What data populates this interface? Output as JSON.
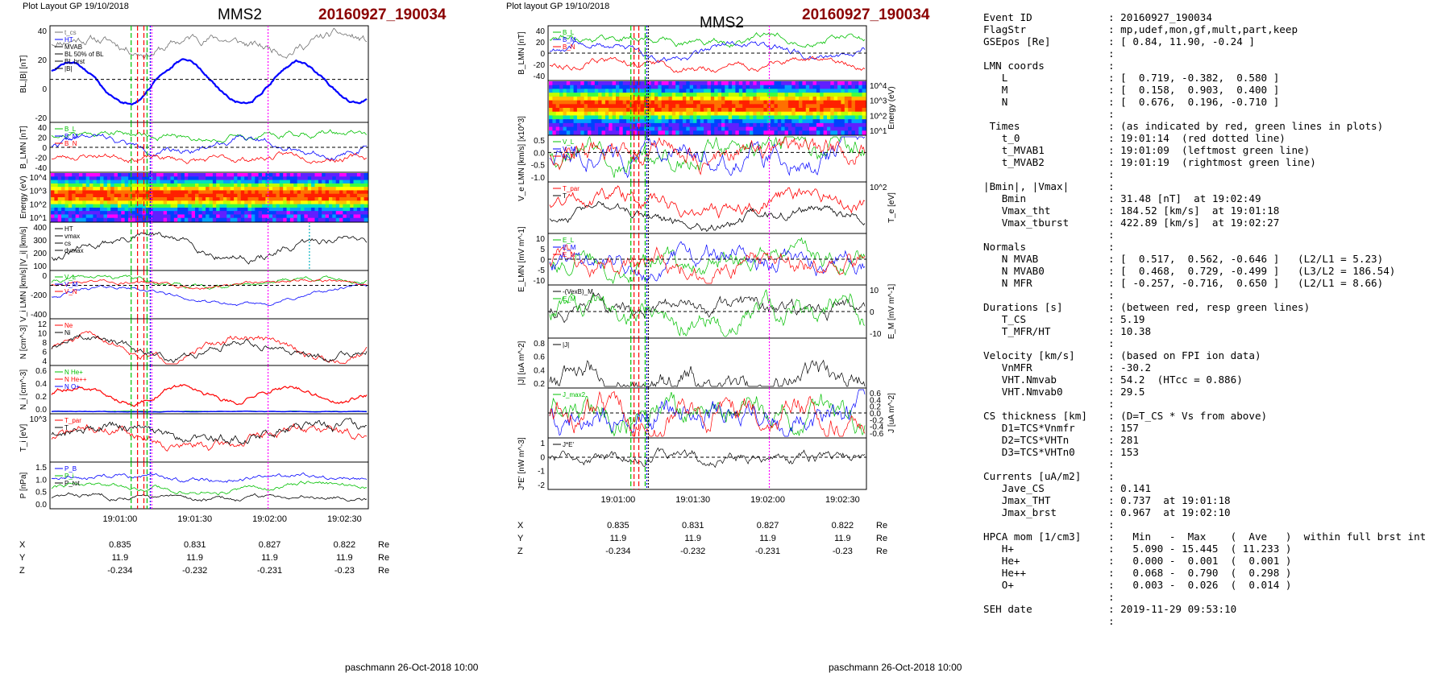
{
  "left_plot": {
    "header_left": "Plot Layout GP 19/10/2018",
    "spacecraft": "MMS2",
    "event": "20160927_190034",
    "footer": "paschmann 26-Oct-2018 10:00"
  },
  "mid_plot": {
    "header_left": "Plot layout GP 19/10/2018",
    "spacecraft": "MMS2",
    "event": "20160927_190034",
    "footer": "paschmann 26-Oct-2018 10:00"
  },
  "time_ticks": [
    "19:01:00",
    "19:01:30",
    "19:02:00",
    "19:02:30"
  ],
  "ephemeris": {
    "rows": [
      {
        "name": "X",
        "values": [
          "0.835",
          "0.831",
          "0.827",
          "0.822"
        ],
        "unit": "Re"
      },
      {
        "name": "Y",
        "values": [
          "11.9",
          "11.9",
          "11.9",
          "11.9"
        ],
        "unit": "Re"
      },
      {
        "name": "Z",
        "values": [
          "-0.234",
          "-0.232",
          "-0.231",
          "-0.23"
        ],
        "unit": "Re"
      }
    ]
  },
  "chart_data": [
    {
      "type": "line",
      "title": "MMS2 20160927_190034",
      "xlabel": "",
      "x_ticks": [
        "19:01:00",
        "19:01:30",
        "19:02:00",
        "19:02:30"
      ],
      "panels": [
        {
          "ylabel": "BL,|B| [nT]",
          "ticks": [
            "40",
            "20",
            "0",
            "-20"
          ],
          "legend": [
            "t_cs",
            "HT",
            "MVAB",
            "BL 50% of BL",
            "BL brst",
            "|B|"
          ]
        },
        {
          "ylabel": "B_LMN [nT]",
          "ticks": [
            "40",
            "20",
            "0",
            "-20",
            "-40"
          ],
          "legend": [
            "B_L",
            "B_M",
            "B_N"
          ]
        },
        {
          "ylabel": "Energy (eV)",
          "ticks": [
            "10^4",
            "10^3",
            "10^2",
            "10^1"
          ],
          "legend": []
        },
        {
          "ylabel": "|V_i| [km/s]",
          "ticks": [
            "400",
            "300",
            "200",
            "100"
          ],
          "legend": [
            "HT",
            "vmax",
            "cs",
            "dvmax"
          ]
        },
        {
          "ylabel": "V_i LMN [km/s]",
          "ticks": [
            "0",
            "-200",
            "-400"
          ],
          "legend": [
            "V_L",
            "V_M",
            "V_N"
          ]
        },
        {
          "ylabel": "N [cm^-3]",
          "ticks": [
            "12",
            "10",
            "8",
            "6",
            "4"
          ],
          "legend": [
            "Ne",
            "Ni"
          ]
        },
        {
          "ylabel": "N_i [cm^-3]",
          "ticks": [
            "0.6",
            "0.4",
            "0.2",
            "0.0"
          ],
          "legend": [
            "N He+",
            "N He++",
            "N O+"
          ]
        },
        {
          "ylabel": "T_i [eV]",
          "ticks": [
            "10^3"
          ],
          "legend": [
            "T_par",
            "T"
          ]
        },
        {
          "ylabel": "P [nPa]",
          "ticks": [
            "1.5",
            "1.0",
            "0.5",
            "0.0"
          ],
          "legend": [
            "P_B",
            "P_i",
            "P_tot"
          ]
        }
      ]
    },
    {
      "type": "line",
      "title": "MMS2 20160927_190034",
      "xlabel": "",
      "x_ticks": [
        "19:01:00",
        "19:01:30",
        "19:02:00",
        "19:02:30"
      ],
      "panels": [
        {
          "ylabel": "B_LMN [nT]",
          "ticks": [
            "40",
            "20",
            "0",
            "-20",
            "-40"
          ],
          "legend": [
            "B_L",
            "B_M",
            "B_N"
          ]
        },
        {
          "ylabel": "Energy (eV)",
          "ticks": [
            "10^4",
            "10^3",
            "10^2",
            "10^1"
          ],
          "legend": []
        },
        {
          "ylabel": "V_e LMN [km/s] [x10^3]",
          "ticks": [
            "0.5",
            "0.0",
            "-0.5",
            "-1.0"
          ],
          "legend": [
            "V_L",
            "V_M",
            "V_N"
          ]
        },
        {
          "ylabel": "T_e [eV]",
          "ticks": [
            "10^2"
          ],
          "legend": [
            "T_par",
            "T"
          ]
        },
        {
          "ylabel": "E_LMN [mV m^-1]",
          "ticks": [
            "10",
            "5",
            "0",
            "-5",
            "-10"
          ],
          "legend": [
            "E_L",
            "E_M",
            "E_N"
          ]
        },
        {
          "ylabel": "E_M [mV m^-1]",
          "ticks": [
            "10",
            "0",
            "-10"
          ],
          "legend": [
            "-(VexB)_M",
            "E_M"
          ]
        },
        {
          "ylabel": "|J| [uA m^-2]",
          "ticks": [
            "0.8",
            "0.6",
            "0.4",
            "0.2"
          ],
          "legend": [
            "|J|"
          ]
        },
        {
          "ylabel": "J [uA m^-2]",
          "ticks": [
            "0.6",
            "0.4",
            "0.2",
            "0.0",
            "-0.2",
            "-0.4",
            "-0.6"
          ],
          "legend": [
            "J_max2"
          ]
        },
        {
          "ylabel": "J*E' [nW m^-3]",
          "ticks": [
            "1",
            "0",
            "-1",
            "-2"
          ],
          "legend": [
            "J*E'"
          ]
        }
      ]
    }
  ],
  "info_lines": [
    {
      "k": "Event ID",
      "v": ": 20160927_190034"
    },
    {
      "k": "FlagStr",
      "v": ": mp,udef,mon,gf,mult,part,keep"
    },
    {
      "k": "GSEpos [Re]",
      "v": ": [ 0.84, 11.90, -0.24 ]"
    },
    {
      "k": "",
      "v": ":"
    },
    {
      "k": "LMN coords",
      "v": ":"
    },
    {
      "k": "   L",
      "v": ": [  0.719, -0.382,  0.580 ]"
    },
    {
      "k": "   M",
      "v": ": [  0.158,  0.903,  0.400 ]"
    },
    {
      "k": "   N",
      "v": ": [  0.676,  0.196, -0.710 ]"
    },
    {
      "k": "",
      "v": ":"
    },
    {
      "k": " Times",
      "v": ": (as indicated by red, green lines in plots)"
    },
    {
      "k": "   t_0",
      "v": ": 19:01:14  (red dotted line)"
    },
    {
      "k": "   t_MVAB1",
      "v": ": 19:01:09  (leftmost green line)"
    },
    {
      "k": "   t_MVAB2",
      "v": ": 19:01:19  (rightmost green line)"
    },
    {
      "k": "",
      "v": ":"
    },
    {
      "k": "|Bmin|, |Vmax|",
      "v": ":"
    },
    {
      "k": "   Bmin",
      "v": ": 31.48 [nT]  at 19:02:49"
    },
    {
      "k": "   Vmax_tht",
      "v": ": 184.52 [km/s]  at 19:01:18"
    },
    {
      "k": "   Vmax_tburst",
      "v": ": 422.89 [km/s]  at 19:02:27"
    },
    {
      "k": "",
      "v": ":"
    },
    {
      "k": "Normals",
      "v": ":"
    },
    {
      "k": "   N MVAB",
      "v": ": [  0.517,  0.562, -0.646 ]   (L2/L1 = 5.23)"
    },
    {
      "k": "   N MVAB0",
      "v": ": [  0.468,  0.729, -0.499 ]   (L3/L2 = 186.54)"
    },
    {
      "k": "   N MFR",
      "v": ": [ -0.257, -0.716,  0.650 ]   (L2/L1 = 8.66)"
    },
    {
      "k": "",
      "v": ":"
    },
    {
      "k": "Durations [s]",
      "v": ": (between red, resp green lines)"
    },
    {
      "k": "   T_CS",
      "v": ": 5.19"
    },
    {
      "k": "   T_MFR/HT",
      "v": ": 10.38"
    },
    {
      "k": "",
      "v": ":"
    },
    {
      "k": "Velocity [km/s]",
      "v": ": (based on FPI ion data)"
    },
    {
      "k": "   VnMFR",
      "v": ": -30.2"
    },
    {
      "k": "   VHT.Nmvab",
      "v": ": 54.2  (HTcc = 0.886)"
    },
    {
      "k": "   VHT.Nmvab0",
      "v": ": 29.5"
    },
    {
      "k": "",
      "v": ":"
    },
    {
      "k": "CS thickness [km]",
      "v": ": (D=T_CS * Vs from above)"
    },
    {
      "k": "   D1=TCS*Vnmfr",
      "v": ": 157"
    },
    {
      "k": "   D2=TCS*VHTn",
      "v": ": 281"
    },
    {
      "k": "   D3=TCS*VHTn0",
      "v": ": 153"
    },
    {
      "k": "",
      "v": ":"
    },
    {
      "k": "Currents [uA/m2]",
      "v": ":"
    },
    {
      "k": "   Jave_CS",
      "v": ": 0.141"
    },
    {
      "k": "   Jmax_THT",
      "v": ": 0.737  at 19:01:18"
    },
    {
      "k": "   Jmax_brst",
      "v": ": 0.967  at 19:02:10"
    },
    {
      "k": "",
      "v": ":"
    },
    {
      "k": "HPCA mom [1/cm3]",
      "v": ":   Min   -  Max    (  Ave   )  within full brst int"
    },
    {
      "k": "   H+",
      "v": ":   5.090 - 15.445  ( 11.233 )"
    },
    {
      "k": "   He+",
      "v": ":   0.000 -  0.001  (  0.001 )"
    },
    {
      "k": "   He++",
      "v": ":   0.068 -  0.790  (  0.298 )"
    },
    {
      "k": "   O+",
      "v": ":   0.003 -  0.026  (  0.014 )"
    },
    {
      "k": "",
      "v": ":"
    },
    {
      "k": "SEH date",
      "v": ": 2019-11-29 09:53:10"
    },
    {
      "k": "",
      "v": ":"
    }
  ],
  "colors": {
    "event": "#8b0000",
    "blue": "#0000ff",
    "red": "#ff0000",
    "green": "#00c000",
    "magenta": "#ff00ff",
    "cyan": "#00b0c0",
    "grey": "#707070"
  }
}
